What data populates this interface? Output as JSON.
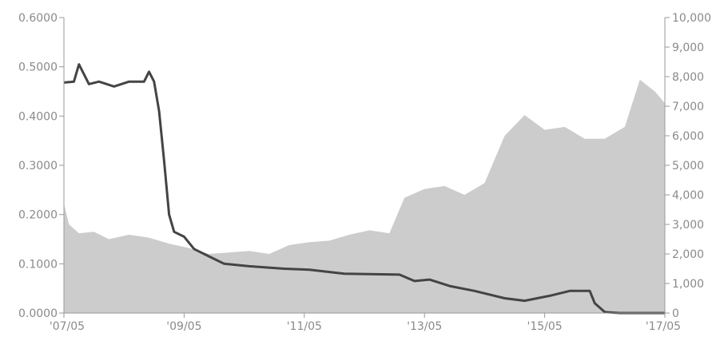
{
  "chart_data": {
    "type": "line",
    "x_axis": {
      "ticks": [
        "'07/05",
        "'09/05",
        "'11/05",
        "'13/05",
        "'15/05",
        "'17/05"
      ],
      "range": [
        "2007-05",
        "2017-05"
      ]
    },
    "y_left": {
      "ticks": [
        "0.0000",
        "0.1000",
        "0.2000",
        "0.3000",
        "0.4000",
        "0.5000",
        "0.6000"
      ],
      "range": [
        0,
        0.6
      ]
    },
    "y_right": {
      "ticks": [
        "0",
        "1,000",
        "2,000",
        "3,000",
        "4,000",
        "5,000",
        "6,000",
        "7,000",
        "8,000",
        "9,000",
        "10,000"
      ],
      "range": [
        0,
        10000
      ]
    },
    "series": [
      {
        "axis": "right",
        "style": "area",
        "color": "#cccccc",
        "points": [
          [
            "2007-05",
            3700
          ],
          [
            "2007-06",
            3000
          ],
          [
            "2007-08",
            2700
          ],
          [
            "2007-11",
            2750
          ],
          [
            "2008-02",
            2500
          ],
          [
            "2008-06",
            2650
          ],
          [
            "2008-10",
            2550
          ],
          [
            "2009-02",
            2350
          ],
          [
            "2009-06",
            2200
          ],
          [
            "2009-10",
            2000
          ],
          [
            "2010-02",
            2050
          ],
          [
            "2010-06",
            2100
          ],
          [
            "2010-10",
            2000
          ],
          [
            "2011-02",
            2300
          ],
          [
            "2011-06",
            2400
          ],
          [
            "2011-10",
            2450
          ],
          [
            "2012-02",
            2650
          ],
          [
            "2012-06",
            2800
          ],
          [
            "2012-10",
            2700
          ],
          [
            "2013-01",
            3900
          ],
          [
            "2013-05",
            4200
          ],
          [
            "2013-09",
            4300
          ],
          [
            "2014-01",
            4000
          ],
          [
            "2014-05",
            4400
          ],
          [
            "2014-09",
            6000
          ],
          [
            "2015-01",
            6700
          ],
          [
            "2015-05",
            6200
          ],
          [
            "2015-09",
            6300
          ],
          [
            "2016-01",
            5900
          ],
          [
            "2016-05",
            5900
          ],
          [
            "2016-09",
            6300
          ],
          [
            "2016-12",
            7900
          ],
          [
            "2017-03",
            7500
          ],
          [
            "2017-05",
            7100
          ]
        ]
      },
      {
        "axis": "left",
        "style": "line",
        "color": "#444444",
        "points": [
          [
            "2007-05",
            0.468
          ],
          [
            "2007-07",
            0.47
          ],
          [
            "2007-08",
            0.505
          ],
          [
            "2007-10",
            0.465
          ],
          [
            "2007-12",
            0.47
          ],
          [
            "2008-03",
            0.46
          ],
          [
            "2008-06",
            0.47
          ],
          [
            "2008-09",
            0.47
          ],
          [
            "2008-10",
            0.49
          ],
          [
            "2008-11",
            0.47
          ],
          [
            "2008-12",
            0.41
          ],
          [
            "2009-01",
            0.31
          ],
          [
            "2009-02",
            0.2
          ],
          [
            "2009-03",
            0.165
          ],
          [
            "2009-05",
            0.155
          ],
          [
            "2009-07",
            0.13
          ],
          [
            "2009-10",
            0.115
          ],
          [
            "2010-01",
            0.1
          ],
          [
            "2010-06",
            0.095
          ],
          [
            "2011-01",
            0.09
          ],
          [
            "2011-06",
            0.088
          ],
          [
            "2012-01",
            0.08
          ],
          [
            "2012-06",
            0.079
          ],
          [
            "2012-12",
            0.078
          ],
          [
            "2013-03",
            0.065
          ],
          [
            "2013-06",
            0.068
          ],
          [
            "2013-10",
            0.055
          ],
          [
            "2014-03",
            0.045
          ],
          [
            "2014-09",
            0.03
          ],
          [
            "2015-01",
            0.025
          ],
          [
            "2015-06",
            0.035
          ],
          [
            "2015-10",
            0.045
          ],
          [
            "2016-02",
            0.045
          ],
          [
            "2016-03",
            0.02
          ],
          [
            "2016-05",
            0.002
          ],
          [
            "2016-08",
            0.0
          ],
          [
            "2017-05",
            0.0
          ]
        ]
      }
    ],
    "grid": false
  }
}
